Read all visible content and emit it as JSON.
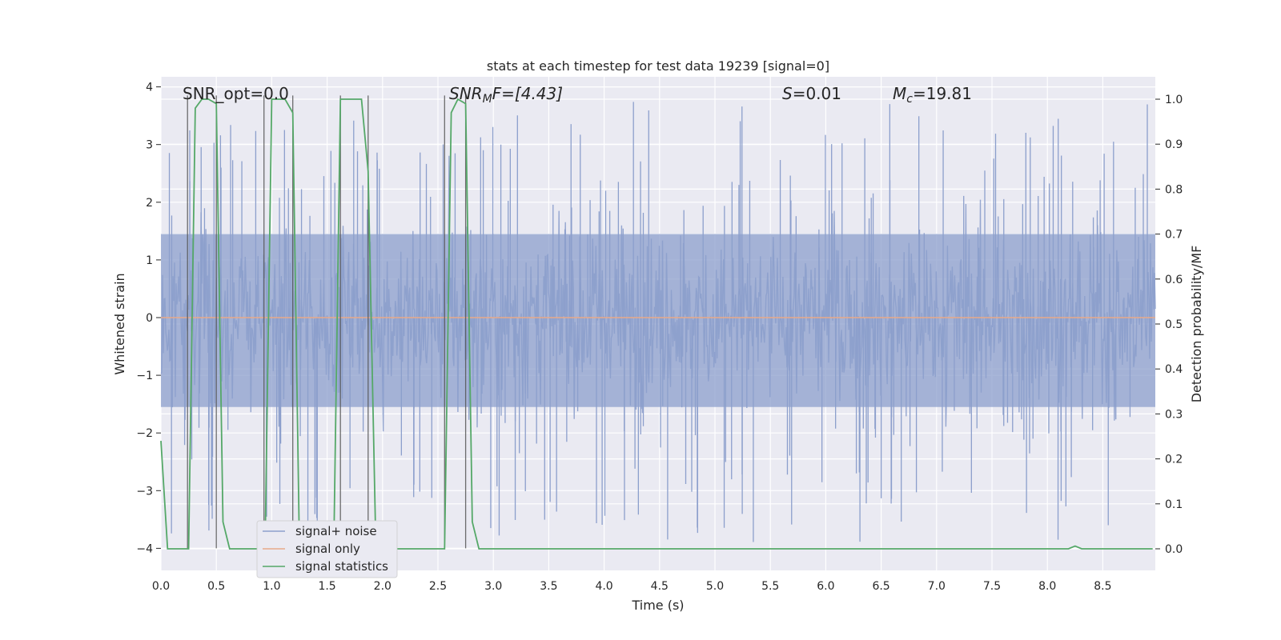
{
  "chart_data": {
    "type": "line",
    "title": "stats at each timestep for test data 19239 [signal=0]",
    "xlabel": "Time (s)",
    "ylabel": "Whitened strain",
    "ylabel_right": "Detection probability/MF",
    "xlim": [
      0.0,
      9.0
    ],
    "ylim": [
      -4.4,
      4.15
    ],
    "ylim_right": [
      -0.045,
      1.035
    ],
    "x_ticks": [
      "0.0",
      "0.5",
      "1.0",
      "1.5",
      "2.0",
      "2.5",
      "3.0",
      "3.5",
      "4.0",
      "4.5",
      "5.0",
      "5.5",
      "6.0",
      "6.5",
      "7.0",
      "7.5",
      "8.0",
      "8.5"
    ],
    "y_ticks": [
      "−4",
      "−3",
      "−2",
      "−1",
      "0",
      "1",
      "2",
      "3",
      "4"
    ],
    "y_right_ticks": [
      "0.0",
      "0.1",
      "0.2",
      "0.3",
      "0.4",
      "0.5",
      "0.6",
      "0.7",
      "0.8",
      "0.9",
      "1.0"
    ],
    "annotations": {
      "snr_opt": "SNR_opt=0.0",
      "snr_mf_main": "SNR",
      "snr_mf_sub": "M",
      "snr_mf_rest": "F=[4.43]",
      "s_italic": "S",
      "s_rest": "=0.01",
      "mc_italic": "M",
      "mc_sub": "c",
      "mc_rest": "=19.81"
    },
    "series": [
      {
        "name": "signal+ noise",
        "color": "#8c9fcc",
        "description_values": "dense noise spanning roughly -3.5 to 3.8",
        "envelope_typical": [
          -1.8,
          1.8
        ],
        "extremes_max": 3.8,
        "extremes_min": -4.0
      },
      {
        "name": "signal only",
        "color": "#e8a989",
        "x": [
          0.0,
          9.0
        ],
        "y": [
          0.0,
          0.0
        ]
      },
      {
        "name": "signal statistics",
        "color": "#55a868",
        "axis": "right",
        "x": [
          0.0,
          0.06,
          0.12,
          0.19,
          0.25,
          0.31,
          0.37,
          0.43,
          0.5,
          0.56,
          0.62,
          0.68,
          0.75,
          0.81,
          0.87,
          0.94,
          1.0,
          1.06,
          1.12,
          1.19,
          1.25,
          1.31,
          1.37,
          1.43,
          1.5,
          1.56,
          1.62,
          1.68,
          1.75,
          1.81,
          1.87,
          1.94,
          2.0,
          2.06,
          2.12,
          2.19,
          2.25,
          2.31,
          2.37,
          2.43,
          2.5,
          2.56,
          2.62,
          2.68,
          2.75,
          2.81,
          2.87,
          2.94,
          3.0,
          8.12,
          8.19,
          8.25,
          8.31,
          8.37,
          8.95
        ],
        "y": [
          0.24,
          0.0,
          0.0,
          0.0,
          0.0,
          0.98,
          1.0,
          1.0,
          0.99,
          0.06,
          0.0,
          0.0,
          0.0,
          0.0,
          0.0,
          0.0,
          1.0,
          1.0,
          1.0,
          0.97,
          0.0,
          0.0,
          0.0,
          0.0,
          0.0,
          0.0,
          1.0,
          1.0,
          1.0,
          1.0,
          0.84,
          0.0,
          0.0,
          0.0,
          0.0,
          0.0,
          0.0,
          0.0,
          0.0,
          0.0,
          0.0,
          0.0,
          0.97,
          1.0,
          0.99,
          0.06,
          0.0,
          0.0,
          0.0,
          0.0,
          0.0,
          0.006,
          0.0,
          0.0,
          0.0
        ]
      }
    ],
    "vertical_markers": [
      0.24,
      0.5,
      0.93,
      1.19,
      1.62,
      1.87,
      2.56,
      2.75
    ],
    "legend_position": "lower left",
    "grid": true
  }
}
